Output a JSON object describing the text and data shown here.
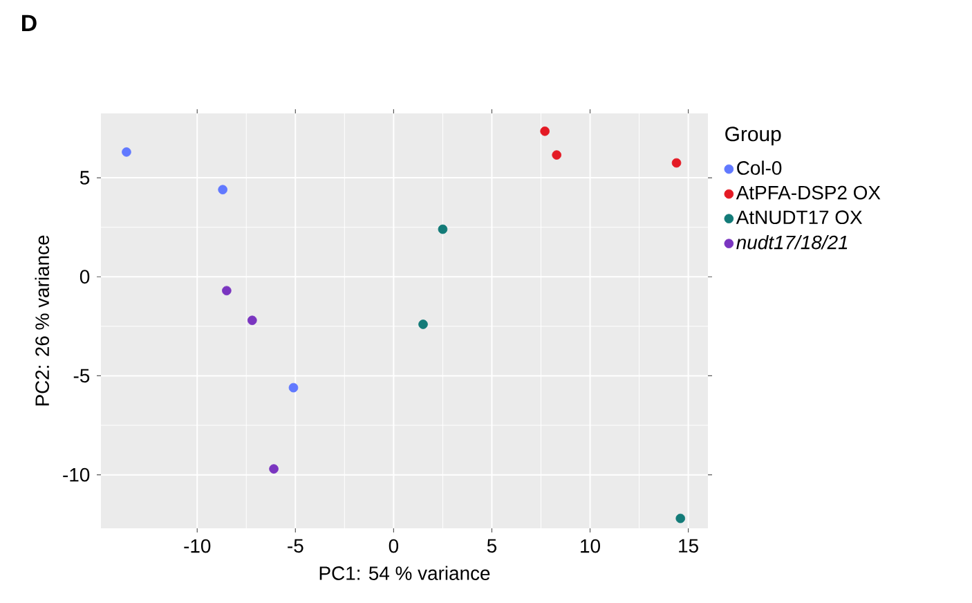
{
  "chart_data": {
    "type": "scatter",
    "annotations": [
      "D"
    ],
    "xlabel": "PC1: 54 % variance",
    "ylabel": "PC2: 26 % variance",
    "legend_title": "Group",
    "legend": "right",
    "grid": true,
    "marker": "circle",
    "xlim": [
      -14.9,
      16.0
    ],
    "ylim": [
      -12.7,
      8.25
    ],
    "xticks": [
      -10,
      -5,
      0,
      5,
      10,
      15
    ],
    "yticks": [
      -10,
      -5,
      0,
      5
    ],
    "series": [
      {
        "name": "Col-0",
        "color": "#6179ff",
        "x": [
          -13.6,
          -8.7,
          -5.1
        ],
        "values": [
          6.3,
          4.4,
          -5.6
        ]
      },
      {
        "name": "AtPFA-DSP2 OX",
        "color": "#e41a25",
        "x": [
          7.7,
          8.3,
          14.4
        ],
        "values": [
          7.35,
          6.15,
          5.75
        ]
      },
      {
        "name": "AtNUDT17 OX",
        "color": "#137b78",
        "x": [
          2.5,
          1.5,
          14.6
        ],
        "values": [
          2.4,
          -2.4,
          -12.2
        ]
      },
      {
        "name": "nudt17/18/21",
        "color": "#7a35c0",
        "x": [
          -8.5,
          -7.2,
          -6.1
        ],
        "values": [
          -0.7,
          -2.2,
          -9.7
        ]
      }
    ]
  }
}
